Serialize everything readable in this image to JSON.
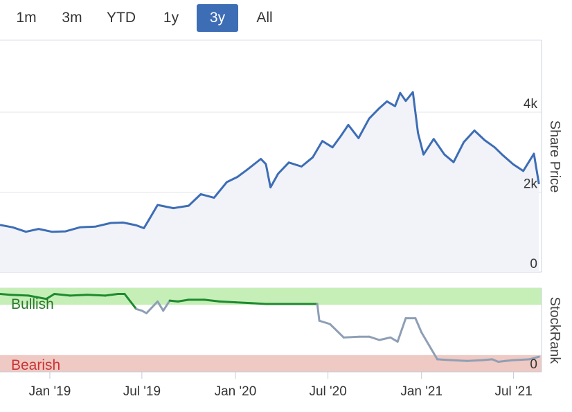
{
  "range_selector": {
    "buttons": [
      "1m",
      "3m",
      "YTD",
      "1y",
      "3y",
      "All"
    ],
    "active": "3y"
  },
  "colors": {
    "price_line": "#3d6db5",
    "price_fill": "#f1f3f9",
    "bullish_band": "#c6efb8",
    "bearish_band": "#efc9c3",
    "bullish_line": "#1e8a2e",
    "neutral_line": "#8e9fb5",
    "bearish_text": "#cc3333",
    "bullish_text": "#2b7a2b"
  },
  "chart_data": [
    {
      "type": "line",
      "x_type": "date",
      "xlim": [
        "2018-09-25",
        "2021-08-25"
      ],
      "ylim": [
        0,
        5800
      ],
      "ylabel": "Share Price",
      "y_ticks": [
        0,
        2000,
        4000
      ],
      "y_tick_labels": [
        "0",
        "2k",
        "4k"
      ],
      "grid": true,
      "series": [
        {
          "name": "",
          "x": [
            "2018-09-25",
            "2018-10-20",
            "2018-11-15",
            "2018-12-10",
            "2019-01-05",
            "2019-02-01",
            "2019-03-01",
            "2019-04-01",
            "2019-05-01",
            "2019-05-25",
            "2019-06-20",
            "2019-07-05",
            "2019-07-15",
            "2019-08-01",
            "2019-09-01",
            "2019-10-01",
            "2019-10-25",
            "2019-11-20",
            "2019-12-15",
            "2020-01-05",
            "2020-01-25",
            "2020-02-20",
            "2020-03-01",
            "2020-03-10",
            "2020-03-25",
            "2020-04-15",
            "2020-05-10",
            "2020-06-01",
            "2020-06-20",
            "2020-07-10",
            "2020-07-25",
            "2020-08-10",
            "2020-08-30",
            "2020-09-20",
            "2020-10-10",
            "2020-10-25",
            "2020-11-10",
            "2020-11-20",
            "2020-12-01",
            "2020-12-15",
            "2020-12-25",
            "2021-01-05",
            "2021-01-25",
            "2021-02-15",
            "2021-03-05",
            "2021-03-25",
            "2021-04-15",
            "2021-05-05",
            "2021-05-25",
            "2021-06-10",
            "2021-06-30",
            "2021-07-20",
            "2021-08-10",
            "2021-08-20"
          ],
          "values": [
            1180,
            1120,
            1010,
            1080,
            1010,
            1020,
            1120,
            1140,
            1230,
            1240,
            1170,
            1100,
            1310,
            1680,
            1600,
            1660,
            1950,
            1860,
            2250,
            2380,
            2570,
            2830,
            2700,
            2120,
            2460,
            2740,
            2640,
            2870,
            3280,
            3120,
            3380,
            3680,
            3350,
            3840,
            4100,
            4270,
            4150,
            4480,
            4280,
            4500,
            3480,
            2940,
            3330,
            2940,
            2750,
            3250,
            3540,
            3300,
            3120,
            2920,
            2700,
            2530,
            2960,
            2200
          ]
        }
      ]
    },
    {
      "type": "line",
      "x_type": "date",
      "xlim": [
        "2018-09-25",
        "2021-08-25"
      ],
      "ylim": [
        0,
        100
      ],
      "ylabel": "StockRank",
      "y_ticks": [
        0
      ],
      "y_tick_labels": [
        "0"
      ],
      "x_tick_labels": [
        "Jan '19",
        "Jul '19",
        "Jan '20",
        "Jul '20",
        "Jan '21",
        "Jul '21"
      ],
      "x_ticks": [
        "2019-01-01",
        "2019-07-01",
        "2020-01-01",
        "2020-07-01",
        "2021-01-01",
        "2021-07-01"
      ],
      "bands": [
        {
          "label": "Bullish",
          "from": 80,
          "to": 100
        },
        {
          "label": "Bearish",
          "from": 0,
          "to": 20
        }
      ],
      "series": [
        {
          "name": "",
          "x": [
            "2018-09-25",
            "2018-10-15",
            "2018-11-20",
            "2018-12-25",
            "2019-01-10",
            "2019-02-10",
            "2019-03-15",
            "2019-04-20",
            "2019-05-15",
            "2019-05-28",
            "2019-06-20",
            "2019-07-01",
            "2019-07-10",
            "2019-08-01",
            "2019-08-12",
            "2019-08-25",
            "2019-09-10",
            "2019-10-01",
            "2019-11-01",
            "2019-12-01",
            "2020-01-01",
            "2020-02-01",
            "2020-03-01",
            "2020-04-01",
            "2020-05-01",
            "2020-05-20",
            "2020-06-10",
            "2020-06-14",
            "2020-07-05",
            "2020-08-01",
            "2020-09-01",
            "2020-09-20",
            "2020-10-10",
            "2020-11-01",
            "2020-11-15",
            "2020-12-01",
            "2020-12-20",
            "2021-01-01",
            "2021-02-01",
            "2021-03-01",
            "2021-04-01",
            "2021-05-01",
            "2021-05-20",
            "2021-06-01",
            "2021-06-15",
            "2021-07-01",
            "2021-08-01",
            "2021-08-20"
          ],
          "values": [
            93,
            92,
            91,
            87,
            93,
            91,
            92,
            91,
            93,
            93,
            75,
            73,
            70,
            84,
            73,
            85,
            84,
            86,
            86,
            84,
            83,
            82,
            81,
            81,
            81,
            81,
            81,
            61,
            57,
            41,
            42,
            42,
            38,
            41,
            36,
            64,
            64,
            47,
            15,
            14,
            13,
            14,
            15,
            12,
            13,
            14,
            15,
            18
          ]
        }
      ]
    }
  ]
}
